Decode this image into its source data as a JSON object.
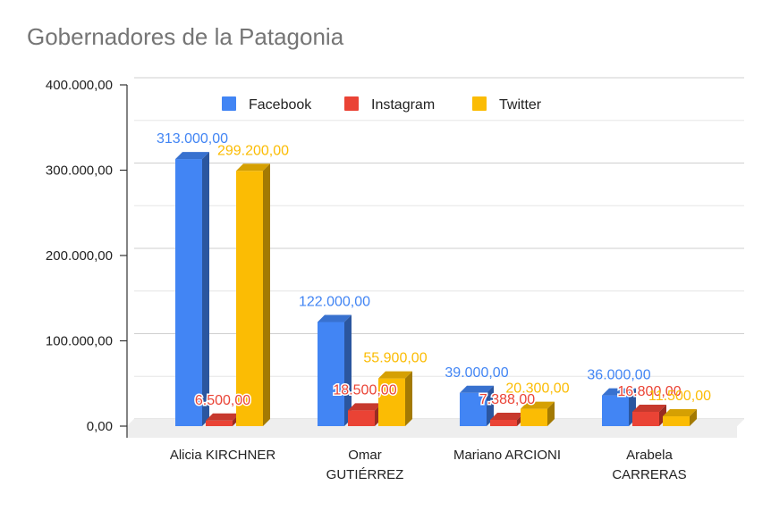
{
  "chart_data": {
    "type": "bar",
    "title": "Gobernadores de la Patagonia",
    "xlabel": "",
    "ylabel": "",
    "categories": [
      [
        "Alicia KIRCHNER"
      ],
      [
        "Omar",
        "GUTIÉRREZ"
      ],
      [
        "Mariano ARCIONI"
      ],
      [
        "Arabela",
        "CARRERAS"
      ]
    ],
    "series": [
      {
        "name": "Facebook",
        "color": "#4285f4",
        "values": [
          313000,
          122000,
          39000,
          36000
        ],
        "labels": [
          "313.000,00",
          "122.000,00",
          "39.000,00",
          "36.000,00"
        ]
      },
      {
        "name": "Instagram",
        "color": "#ea4335",
        "values": [
          6500,
          18500,
          7388,
          16800
        ],
        "labels": [
          "6.500,00",
          "18.500,00",
          "7.388,00",
          "16.800,00"
        ]
      },
      {
        "name": "Twitter",
        "color": "#fbbc04",
        "values": [
          299200,
          55900,
          20300,
          11500
        ],
        "labels": [
          "299.200,00",
          "55.900,00",
          "20.300,00",
          "11.500,00"
        ]
      }
    ],
    "ylim": [
      0,
      400000
    ],
    "yticks": [
      0,
      100000,
      200000,
      300000,
      400000
    ],
    "ytick_labels": [
      "0,00",
      "100.000,00",
      "200.000,00",
      "300.000,00",
      "400.000,00"
    ],
    "legend_position": "top",
    "grid": true,
    "style": "3d"
  }
}
